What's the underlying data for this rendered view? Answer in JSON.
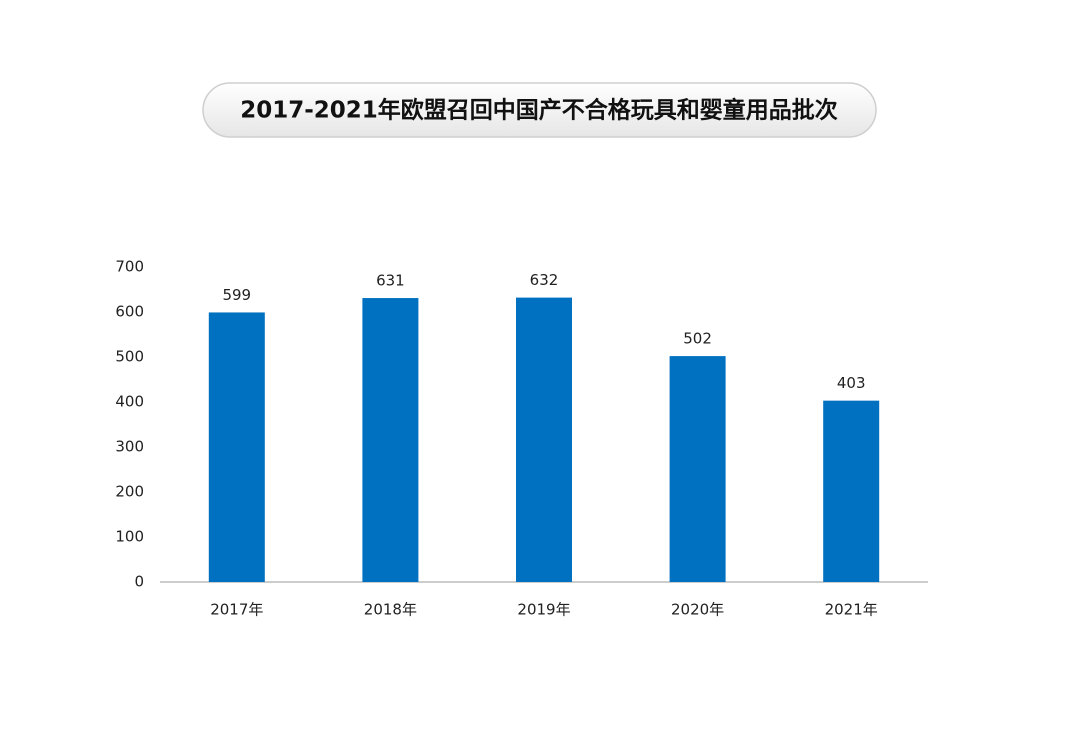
{
  "chart_data": {
    "type": "bar",
    "title": "2017-2021年欧盟召回中国产不合格玩具和婴童用品批次",
    "categories": [
      "2017年",
      "2018年",
      "2019年",
      "2020年",
      "2021年"
    ],
    "values": [
      599,
      631,
      632,
      502,
      403
    ],
    "color": "#0070c0",
    "ylim": [
      0,
      700
    ],
    "yticks": [
      0,
      100,
      200,
      300,
      400,
      500,
      600,
      700
    ],
    "grid": false
  }
}
